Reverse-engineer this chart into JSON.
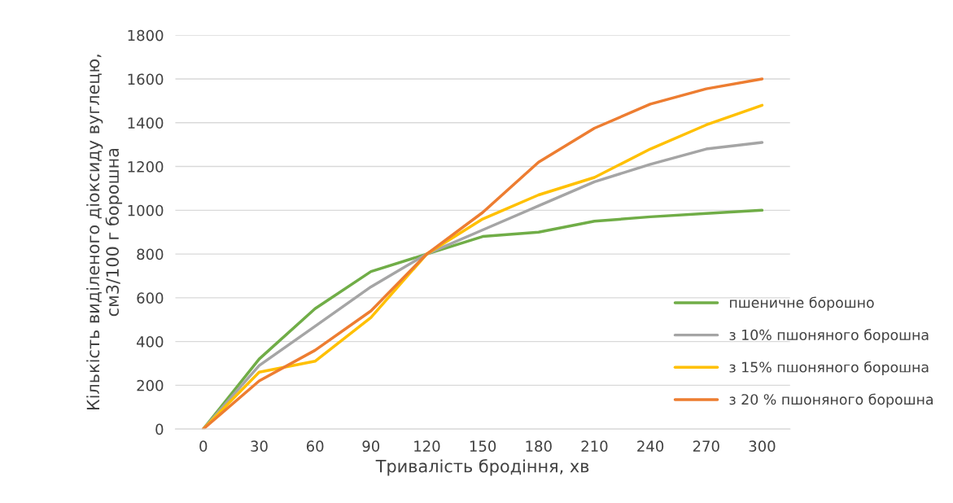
{
  "chart_data": {
    "type": "line",
    "xlabel": "Тривалість бродіння, хв",
    "ylabel": "Кількість виділеного діоксиду вуглецю,\nсм3/100 г борошна",
    "categories": [
      "0",
      "30",
      "60",
      "90",
      "120",
      "150",
      "180",
      "210",
      "240",
      "270",
      "300"
    ],
    "series": [
      {
        "name": "пшеничне борошно",
        "color": "#70ad47",
        "values": [
          0,
          320,
          550,
          720,
          800,
          880,
          900,
          950,
          970,
          985,
          1000
        ]
      },
      {
        "name": "з 10% пшоняного борошна",
        "color": "#a5a5a5",
        "values": [
          0,
          290,
          470,
          650,
          800,
          910,
          1020,
          1130,
          1210,
          1280,
          1310
        ]
      },
      {
        "name": "з 15% пшоняного борошна",
        "color": "#ffc000",
        "values": [
          0,
          260,
          310,
          510,
          800,
          960,
          1070,
          1150,
          1280,
          1390,
          1480
        ]
      },
      {
        "name": "з 20 % пшоняного борошна",
        "color": "#ed7d31",
        "values": [
          0,
          220,
          360,
          540,
          800,
          990,
          1220,
          1375,
          1485,
          1555,
          1600
        ]
      }
    ],
    "ylim": [
      0,
      1800
    ],
    "yticks": [
      0,
      200,
      400,
      600,
      800,
      1000,
      1200,
      1400,
      1600,
      1800
    ],
    "grid": "y",
    "legend": "right",
    "marker": "none",
    "line_style": "solid"
  }
}
